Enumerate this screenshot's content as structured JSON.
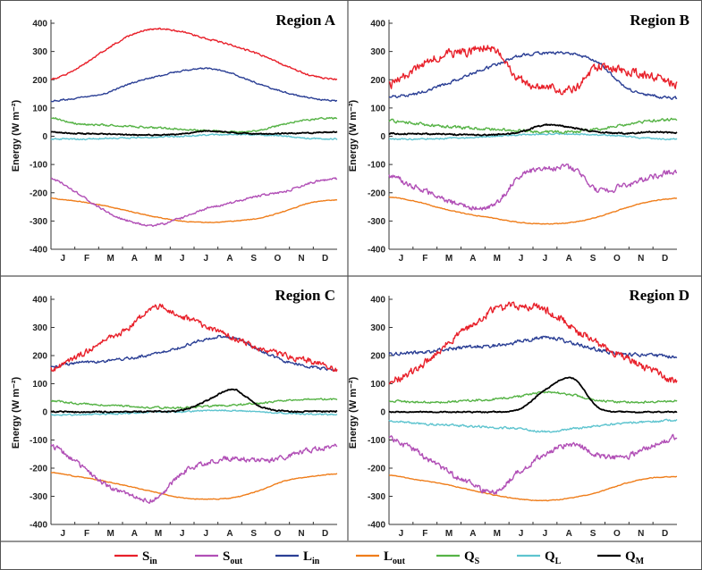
{
  "chart_data": {
    "type": "line",
    "months": [
      "J",
      "F",
      "M",
      "A",
      "M",
      "J",
      "J",
      "A",
      "S",
      "O",
      "N",
      "D"
    ],
    "ylabel": "Energy (W m⁻²)",
    "ylim": [
      -400,
      400
    ],
    "yticks": [
      400,
      300,
      200,
      100,
      0,
      -100,
      -200,
      -300,
      -400
    ],
    "legend": [
      {
        "key": "Sin",
        "base": "S",
        "sub": "in",
        "color": "#e8202a"
      },
      {
        "key": "Sout",
        "base": "S",
        "sub": "out",
        "color": "#b14fb6"
      },
      {
        "key": "Lin",
        "base": "L",
        "sub": "in",
        "color": "#2b3f95"
      },
      {
        "key": "Lout",
        "base": "L",
        "sub": "out",
        "color": "#ef7d1a"
      },
      {
        "key": "QS",
        "base": "Q",
        "sub": "S",
        "color": "#56b346"
      },
      {
        "key": "QL",
        "base": "Q",
        "sub": "L",
        "color": "#5ec4cf"
      },
      {
        "key": "QM",
        "base": "Q",
        "sub": "M",
        "color": "#000000"
      }
    ],
    "panels": [
      {
        "title": "Region A",
        "series": {
          "Sin": {
            "values": [
              200,
              240,
              300,
              355,
              380,
              370,
              345,
              320,
              290,
              250,
              215,
              200
            ],
            "noise": 5
          },
          "Sout": {
            "values": [
              -150,
              -200,
              -260,
              -300,
              -315,
              -290,
              -255,
              -235,
              -210,
              -195,
              -165,
              -150
            ],
            "noise": 6
          },
          "Lin": {
            "values": [
              125,
              135,
              150,
              185,
              210,
              230,
              240,
              220,
              185,
              155,
              135,
              125
            ],
            "noise": 4
          },
          "Lout": {
            "values": [
              -220,
              -230,
              -245,
              -265,
              -285,
              -300,
              -305,
              -300,
              -290,
              -265,
              -235,
              -225
            ],
            "noise": 2
          },
          "QS": {
            "values": [
              65,
              45,
              40,
              35,
              30,
              25,
              20,
              15,
              20,
              45,
              60,
              65
            ],
            "noise": 5
          },
          "QL": {
            "values": [
              -10,
              -10,
              -8,
              -5,
              -3,
              0,
              5,
              5,
              5,
              0,
              -8,
              -10
            ],
            "noise": 4
          },
          "QM": {
            "values": [
              15,
              10,
              8,
              5,
              5,
              8,
              18,
              12,
              8,
              10,
              12,
              15
            ],
            "noise": 3
          }
        }
      },
      {
        "title": "Region B",
        "series": {
          "Sin": {
            "values": [
              180,
              240,
              285,
              300,
              310,
              200,
              175,
              165,
              245,
              230,
              210,
              185
            ],
            "noise": 24
          },
          "Sout": {
            "values": [
              -140,
              -180,
              -220,
              -250,
              -245,
              -140,
              -115,
              -115,
              -190,
              -175,
              -145,
              -125
            ],
            "noise": 16
          },
          "Lin": {
            "values": [
              140,
              150,
              180,
              215,
              250,
              285,
              295,
              290,
              260,
              175,
              145,
              135
            ],
            "noise": 8
          },
          "Lout": {
            "values": [
              -215,
              -230,
              -255,
              -275,
              -290,
              -305,
              -310,
              -305,
              -285,
              -255,
              -230,
              -220
            ],
            "noise": 2
          },
          "QS": {
            "values": [
              55,
              45,
              35,
              30,
              25,
              20,
              15,
              15,
              25,
              40,
              55,
              60
            ],
            "noise": 8
          },
          "QL": {
            "values": [
              -10,
              -10,
              -8,
              -5,
              0,
              5,
              8,
              8,
              5,
              0,
              -8,
              -10
            ],
            "noise": 4
          },
          "QM": {
            "values": [
              10,
              8,
              8,
              5,
              5,
              15,
              40,
              30,
              15,
              10,
              15,
              12
            ],
            "noise": 4
          }
        }
      },
      {
        "title": "Region C",
        "series": {
          "Sin": {
            "values": [
              150,
              195,
              250,
              300,
              375,
              340,
              300,
              265,
              225,
              200,
              180,
              150
            ],
            "noise": 16
          },
          "Sout": {
            "values": [
              -120,
              -180,
              -250,
              -295,
              -310,
              -220,
              -180,
              -165,
              -175,
              -160,
              -135,
              -120
            ],
            "noise": 14
          },
          "Lin": {
            "values": [
              160,
              175,
              180,
              190,
              205,
              230,
              260,
              265,
              220,
              180,
              160,
              150
            ],
            "noise": 8
          },
          "Lout": {
            "values": [
              -215,
              -230,
              -245,
              -265,
              -285,
              -305,
              -310,
              -305,
              -280,
              -245,
              -230,
              -220
            ],
            "noise": 2
          },
          "QS": {
            "values": [
              40,
              30,
              25,
              20,
              15,
              15,
              20,
              25,
              30,
              40,
              45,
              45
            ],
            "noise": 5
          },
          "QL": {
            "values": [
              -10,
              -10,
              -8,
              -5,
              0,
              0,
              5,
              5,
              0,
              -5,
              -8,
              -10
            ],
            "noise": 4
          },
          "QM": {
            "values": [
              2,
              0,
              0,
              0,
              2,
              5,
              40,
              80,
              20,
              2,
              2,
              2
            ],
            "noise": 4
          }
        }
      },
      {
        "title": "Region D",
        "series": {
          "Sin": {
            "values": [
              110,
              150,
              225,
              300,
              360,
              380,
              360,
              300,
              240,
              195,
              150,
              110
            ],
            "noise": 22
          },
          "Sout": {
            "values": [
              -95,
              -140,
              -200,
              -250,
              -285,
              -210,
              -150,
              -115,
              -155,
              -160,
              -120,
              -90
            ],
            "noise": 16
          },
          "Lin": {
            "values": [
              205,
              210,
              220,
              230,
              235,
              250,
              265,
              245,
              220,
              205,
              200,
              195
            ],
            "noise": 10
          },
          "Lout": {
            "values": [
              -225,
              -240,
              -255,
              -275,
              -295,
              -310,
              -315,
              -305,
              -285,
              -255,
              -235,
              -230
            ],
            "noise": 2
          },
          "QS": {
            "values": [
              40,
              35,
              35,
              40,
              45,
              55,
              70,
              60,
              40,
              35,
              35,
              40
            ],
            "noise": 6
          },
          "QL": {
            "values": [
              -30,
              -40,
              -45,
              -50,
              -55,
              -60,
              -70,
              -60,
              -50,
              -40,
              -35,
              -30
            ],
            "noise": 6
          },
          "QM": {
            "values": [
              0,
              0,
              0,
              0,
              0,
              10,
              80,
              120,
              15,
              0,
              0,
              0
            ],
            "noise": 3
          }
        }
      }
    ]
  }
}
